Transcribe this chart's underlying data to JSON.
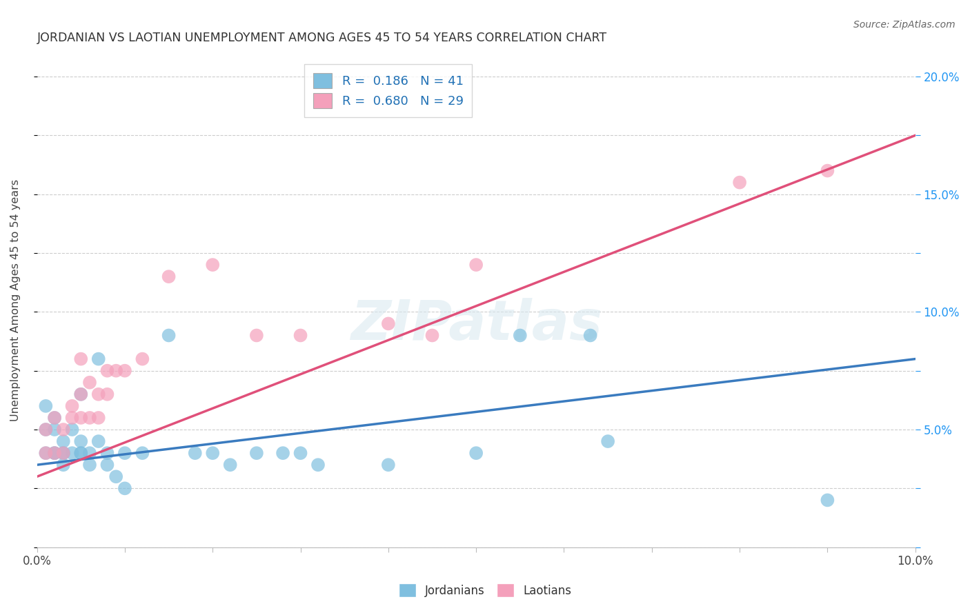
{
  "title": "JORDANIAN VS LAOTIAN UNEMPLOYMENT AMONG AGES 45 TO 54 YEARS CORRELATION CHART",
  "source": "Source: ZipAtlas.com",
  "ylabel": "Unemployment Among Ages 45 to 54 years",
  "xlim": [
    0.0,
    0.1
  ],
  "ylim": [
    0.0,
    0.21
  ],
  "xticks": [
    0.0,
    0.01,
    0.02,
    0.03,
    0.04,
    0.05,
    0.06,
    0.07,
    0.08,
    0.09,
    0.1
  ],
  "yticks": [
    0.0,
    0.025,
    0.05,
    0.075,
    0.1,
    0.125,
    0.15,
    0.175,
    0.2
  ],
  "ytick_right_labels": [
    "",
    "",
    "5.0%",
    "",
    "10.0%",
    "",
    "15.0%",
    "",
    "20.0%"
  ],
  "xtick_labels": [
    "0.0%",
    "",
    "",
    "",
    "",
    "",
    "",
    "",
    "",
    "",
    "10.0%"
  ],
  "jordan_color": "#7fbfdf",
  "laotian_color": "#f4a0bb",
  "jordan_line_color": "#3a7bbf",
  "laotian_line_color": "#e0507a",
  "jordan_R": 0.186,
  "jordan_N": 41,
  "laotian_R": 0.68,
  "laotian_N": 29,
  "background_color": "#ffffff",
  "watermark_text": "ZIPatlas",
  "jordan_line_x": [
    0.0,
    0.1
  ],
  "jordan_line_y": [
    0.035,
    0.08
  ],
  "laotian_line_x": [
    0.0,
    0.1
  ],
  "laotian_line_y": [
    0.03,
    0.175
  ],
  "jordan_points_x": [
    0.001,
    0.001,
    0.001,
    0.002,
    0.002,
    0.002,
    0.002,
    0.003,
    0.003,
    0.003,
    0.003,
    0.004,
    0.004,
    0.005,
    0.005,
    0.005,
    0.005,
    0.006,
    0.006,
    0.007,
    0.007,
    0.008,
    0.008,
    0.009,
    0.01,
    0.01,
    0.012,
    0.015,
    0.018,
    0.02,
    0.022,
    0.025,
    0.028,
    0.03,
    0.032,
    0.04,
    0.05,
    0.055,
    0.063,
    0.065,
    0.09
  ],
  "jordan_points_y": [
    0.04,
    0.05,
    0.06,
    0.04,
    0.04,
    0.05,
    0.055,
    0.035,
    0.04,
    0.04,
    0.045,
    0.04,
    0.05,
    0.04,
    0.04,
    0.045,
    0.065,
    0.04,
    0.035,
    0.045,
    0.08,
    0.04,
    0.035,
    0.03,
    0.04,
    0.025,
    0.04,
    0.09,
    0.04,
    0.04,
    0.035,
    0.04,
    0.04,
    0.04,
    0.035,
    0.035,
    0.04,
    0.09,
    0.09,
    0.045,
    0.02
  ],
  "laotian_points_x": [
    0.001,
    0.001,
    0.002,
    0.002,
    0.003,
    0.003,
    0.004,
    0.004,
    0.005,
    0.005,
    0.005,
    0.006,
    0.006,
    0.007,
    0.007,
    0.008,
    0.008,
    0.009,
    0.01,
    0.012,
    0.015,
    0.02,
    0.025,
    0.03,
    0.04,
    0.045,
    0.05,
    0.08,
    0.09
  ],
  "laotian_points_y": [
    0.04,
    0.05,
    0.04,
    0.055,
    0.04,
    0.05,
    0.055,
    0.06,
    0.055,
    0.065,
    0.08,
    0.055,
    0.07,
    0.055,
    0.065,
    0.065,
    0.075,
    0.075,
    0.075,
    0.08,
    0.115,
    0.12,
    0.09,
    0.09,
    0.095,
    0.09,
    0.12,
    0.155,
    0.16
  ]
}
